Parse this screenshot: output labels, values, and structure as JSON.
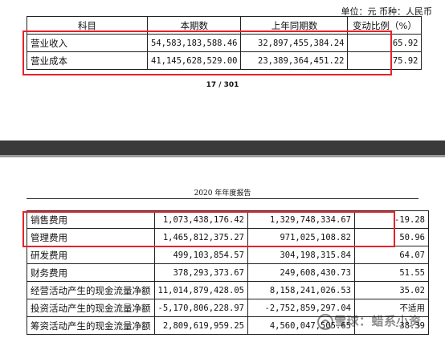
{
  "unit_line": "单位：元  币种：人民币",
  "page_number": "17 / 301",
  "report_header": "2020 年年度报告",
  "table1": {
    "headers": [
      "科目",
      "本期数",
      "上年同期数",
      "变动比例（%）"
    ],
    "rows": [
      [
        "营业收入",
        "54,583,183,588.46",
        "32,897,455,384.24",
        "65.92"
      ],
      [
        "营业成本",
        "41,145,628,529.00",
        "23,389,364,451.22",
        "75.92"
      ]
    ]
  },
  "table2": {
    "rows": [
      [
        "销售费用",
        "1,073,438,176.42",
        "1,329,748,334.67",
        "-19.28"
      ],
      [
        "管理费用",
        "1,465,812,375.27",
        "971,025,108.82",
        "50.96"
      ],
      [
        "研发费用",
        "499,103,854.57",
        "304,198,315.84",
        "64.07"
      ],
      [
        "财务费用",
        "378,293,373.67",
        "249,608,430.73",
        "51.55"
      ],
      [
        "经营活动产生的现金流量净额",
        "11,014,879,428.05",
        "8,158,241,026.53",
        "35.02"
      ],
      [
        "投资活动产生的现金流量净额",
        "-5,170,806,228.97",
        "-2,752,859,297.04",
        "不适用"
      ],
      [
        "筹资活动产生的现金流量净额",
        "2,809,619,959.25",
        "4,560,047,505.65",
        "-38.39"
      ]
    ]
  },
  "watermark": {
    "text": "雪球：蜡系小资",
    "icon": "snowball-logo-icon"
  },
  "colors": {
    "highlight": "#e8202a",
    "gap": "#3a3a3a"
  }
}
